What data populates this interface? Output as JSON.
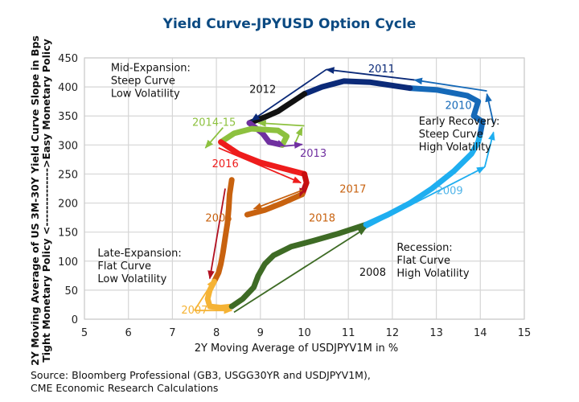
{
  "chart_data": {
    "type": "line",
    "title": "Yield Curve-JPYUSD Option Cycle",
    "xlabel": "2Y Moving Average of USDJPYV1M in %",
    "ylabel": [
      "2Y Moving Average of US 3M-30Y Yield Curve Slope in Bps",
      "Tight Monetary Policy <-------------->Easy Monetary Policy"
    ],
    "xlim": [
      5,
      15
    ],
    "ylim": [
      0,
      450
    ],
    "xticks": [
      5,
      6,
      7,
      8,
      9,
      10,
      11,
      12,
      13,
      14,
      15
    ],
    "yticks": [
      0,
      50,
      100,
      150,
      200,
      250,
      300,
      350,
      400,
      450
    ],
    "grid": true,
    "series": [
      {
        "name": "2006",
        "color": "#c8620f",
        "points": [
          [
            8.35,
            240
          ],
          [
            8.3,
            215
          ],
          [
            8.28,
            190
          ],
          [
            8.25,
            165
          ],
          [
            8.2,
            140
          ],
          [
            8.15,
            115
          ],
          [
            8.1,
            95
          ],
          [
            8.05,
            80
          ],
          [
            7.95,
            65
          ]
        ]
      },
      {
        "name": "2007",
        "color": "#f5b335",
        "points": [
          [
            7.95,
            65
          ],
          [
            7.85,
            50
          ],
          [
            7.8,
            35
          ],
          [
            7.85,
            22
          ],
          [
            8.1,
            20
          ],
          [
            8.35,
            22
          ]
        ]
      },
      {
        "name": "2008",
        "color": "#3e6b25",
        "points": [
          [
            8.35,
            22
          ],
          [
            8.6,
            35
          ],
          [
            8.85,
            55
          ],
          [
            8.95,
            75
          ],
          [
            9.1,
            95
          ],
          [
            9.3,
            110
          ],
          [
            9.7,
            125
          ],
          [
            10.2,
            135
          ],
          [
            10.8,
            148
          ],
          [
            11.4,
            163
          ]
        ]
      },
      {
        "name": "2009",
        "color": "#1eaef0",
        "points": [
          [
            11.4,
            163
          ],
          [
            11.9,
            180
          ],
          [
            12.4,
            200
          ],
          [
            12.9,
            225
          ],
          [
            13.4,
            255
          ],
          [
            13.8,
            285
          ],
          [
            13.95,
            305
          ],
          [
            14.0,
            320
          ]
        ]
      },
      {
        "name": "2010",
        "color": "#1569b8",
        "points": [
          [
            14.0,
            320
          ],
          [
            14.05,
            340
          ],
          [
            13.85,
            350
          ],
          [
            13.95,
            375
          ],
          [
            13.7,
            385
          ],
          [
            13.0,
            395
          ],
          [
            12.4,
            398
          ]
        ]
      },
      {
        "name": "2011",
        "color": "#0b2a78",
        "points": [
          [
            12.4,
            398
          ],
          [
            11.5,
            408
          ],
          [
            10.9,
            410
          ],
          [
            10.4,
            400
          ],
          [
            10.0,
            388
          ]
        ]
      },
      {
        "name": "2012",
        "color": "#111111",
        "points": [
          [
            10.0,
            388
          ],
          [
            9.8,
            378
          ],
          [
            9.6,
            368
          ],
          [
            9.4,
            358
          ],
          [
            9.1,
            348
          ],
          [
            8.75,
            338
          ]
        ]
      },
      {
        "name": "2013",
        "color": "#7030a0",
        "points": [
          [
            8.75,
            338
          ],
          [
            9.05,
            320
          ],
          [
            9.2,
            305
          ],
          [
            9.5,
            300
          ]
        ]
      },
      {
        "name": "2014-15",
        "color": "#8dc13f",
        "points": [
          [
            9.5,
            300
          ],
          [
            9.6,
            315
          ],
          [
            9.4,
            325
          ],
          [
            8.8,
            328
          ],
          [
            8.4,
            320
          ],
          [
            8.1,
            305
          ]
        ]
      },
      {
        "name": "2016",
        "color": "#ee1c1c",
        "points": [
          [
            8.1,
            305
          ],
          [
            8.5,
            285
          ],
          [
            9.0,
            270
          ],
          [
            9.5,
            260
          ],
          [
            10.0,
            250
          ]
        ]
      },
      {
        "name": "2017",
        "color": "#c80f0f",
        "points": [
          [
            10.0,
            250
          ],
          [
            10.05,
            235
          ],
          [
            9.95,
            215
          ]
        ]
      },
      {
        "name": "2018",
        "color": "#c8620f",
        "points": [
          [
            9.95,
            215
          ],
          [
            9.5,
            200
          ],
          [
            9.1,
            188
          ],
          [
            8.7,
            180
          ]
        ]
      }
    ],
    "arrows": [
      {
        "name": "2006-arrow",
        "color": "#b21020",
        "from": [
          8.2,
          225
        ],
        "to": [
          7.85,
          70
        ]
      },
      {
        "name": "2007-arrow-up",
        "color": "#f5b335",
        "from": [
          7.5,
          15
        ],
        "to": [
          7.95,
          68
        ]
      },
      {
        "name": "2007-arrow-right",
        "color": "#f5b335",
        "from": [
          7.5,
          15
        ],
        "to": [
          8.35,
          15
        ]
      },
      {
        "name": "2008-arrow",
        "color": "#3e6b25",
        "from": [
          8.4,
          12
        ],
        "to": [
          11.4,
          157
        ]
      },
      {
        "name": "2009-arrow",
        "color": "#1eaef0",
        "from": [
          11.4,
          157
        ],
        "to": [
          14.1,
          262
        ]
      },
      {
        "name": "2009-arrow-up",
        "color": "#1eaef0",
        "from": [
          14.1,
          262
        ],
        "to": [
          14.3,
          322
        ]
      },
      {
        "name": "2010-arrow",
        "color": "#1569b8",
        "from": [
          14.3,
          337
        ],
        "to": [
          14.15,
          388
        ]
      },
      {
        "name": "2010-arrow-left",
        "color": "#1569b8",
        "from": [
          14.15,
          393
        ],
        "to": [
          12.5,
          412
        ]
      },
      {
        "name": "2011-arrow",
        "color": "#0b2a78",
        "from": [
          12.5,
          412
        ],
        "to": [
          10.5,
          430
        ]
      },
      {
        "name": "2012-arrow",
        "color": "#0b2a78",
        "from": [
          10.5,
          430
        ],
        "to": [
          8.8,
          342
        ]
      },
      {
        "name": "2014-15-arrow-left",
        "color": "#8dc13f",
        "from": [
          10.0,
          333
        ],
        "to": [
          8.95,
          338
        ]
      },
      {
        "name": "2014-15-arrow-down",
        "color": "#8dc13f",
        "from": [
          8.15,
          330
        ],
        "to": [
          7.75,
          295
        ]
      },
      {
        "name": "2014-15-arrow-up",
        "color": "#8dc13f",
        "from": [
          9.8,
          305
        ],
        "to": [
          9.95,
          330
        ]
      },
      {
        "name": "2013-arrow-right",
        "color": "#7030a0",
        "from": [
          9.55,
          298
        ],
        "to": [
          9.95,
          301
        ]
      },
      {
        "name": "2013-arrow-down",
        "color": "#7030a0",
        "from": [
          9.3,
          306
        ],
        "to": [
          9.55,
          298
        ]
      },
      {
        "name": "2016-arrow",
        "color": "#ee1c1c",
        "from": [
          8.05,
          295
        ],
        "to": [
          9.92,
          235
        ]
      },
      {
        "name": "2017-arrow-down",
        "color": "#b21020",
        "from": [
          10.0,
          232
        ],
        "to": [
          9.9,
          212
        ]
      },
      {
        "name": "2017-arrow",
        "color": "#c8620f",
        "from": [
          9.95,
          222
        ],
        "to": [
          8.85,
          190
        ]
      }
    ],
    "year_labels": [
      {
        "text": "2006",
        "color": "#c8620f",
        "x": 7.75,
        "y": 168
      },
      {
        "text": "2007",
        "color": "#f5b335",
        "x": 7.2,
        "y": 10
      },
      {
        "text": "2008",
        "color": "#111111",
        "x": 11.25,
        "y": 75
      },
      {
        "text": "2009",
        "color": "#4fb4e8",
        "x": 13.0,
        "y": 215
      },
      {
        "text": "2010",
        "color": "#1569b8",
        "x": 13.2,
        "y": 362
      },
      {
        "text": "2011",
        "color": "#0b2a78",
        "x": 11.45,
        "y": 425
      },
      {
        "text": "2012",
        "color": "#111111",
        "x": 8.75,
        "y": 390
      },
      {
        "text": "2013",
        "color": "#7030a0",
        "x": 9.9,
        "y": 280
      },
      {
        "text": "2014-15",
        "color": "#8dc13f",
        "x": 7.45,
        "y": 333
      },
      {
        "text": "2016",
        "color": "#ee1c1c",
        "x": 7.9,
        "y": 262
      },
      {
        "text": "2017",
        "color": "#c8620f",
        "x": 10.8,
        "y": 218
      },
      {
        "text": "2018",
        "color": "#c8620f",
        "x": 10.1,
        "y": 168
      }
    ],
    "annotations": [
      {
        "lines": [
          "Mid-Expansion:",
          "Steep Curve",
          "Low Volatility"
        ],
        "x": 5.6,
        "y": 427
      },
      {
        "lines": [
          "Early Recovery:",
          "Steep Curve",
          "High Volatility"
        ],
        "x": 12.6,
        "y": 335
      },
      {
        "lines": [
          "Late-Expansion:",
          "Flat Curve",
          "Low Volatility"
        ],
        "x": 5.3,
        "y": 108
      },
      {
        "lines": [
          "Recession:",
          "Flat Curve",
          "High Volatility"
        ],
        "x": 12.1,
        "y": 118
      }
    ]
  },
  "source": {
    "line1": "Source: Bloomberg Professional (GB3, USGG30YR and USDJPYV1M),",
    "line2": "CME Economic Research Calculations"
  }
}
